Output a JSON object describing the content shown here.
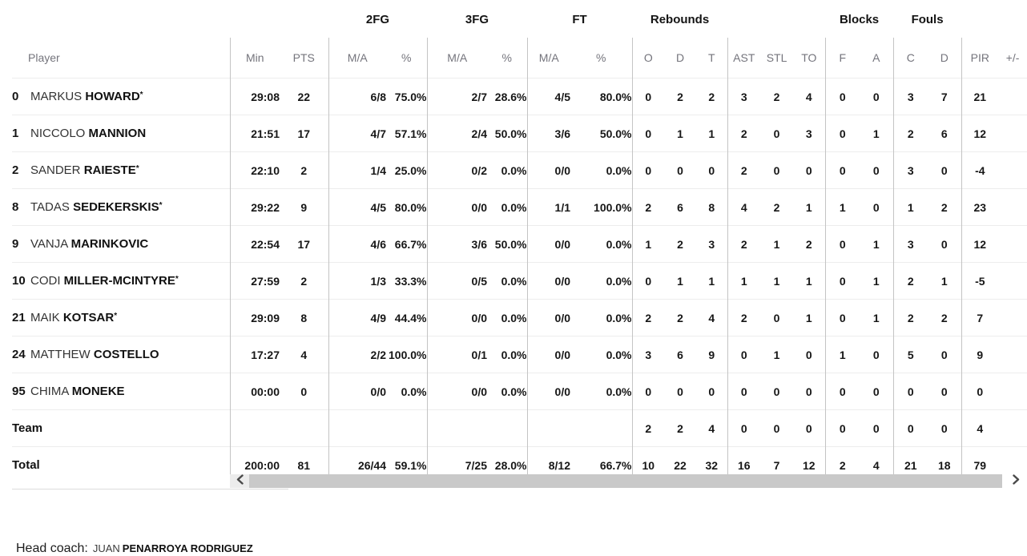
{
  "table": {
    "player_col_header": "Player",
    "starter_marker": "*",
    "groups": [
      {
        "label": "",
        "cols": [
          "Min",
          "PTS"
        ]
      },
      {
        "label": "2FG",
        "cols": [
          "M/A",
          "%"
        ]
      },
      {
        "label": "3FG",
        "cols": [
          "M/A",
          "%"
        ]
      },
      {
        "label": "FT",
        "cols": [
          "M/A",
          "%"
        ]
      },
      {
        "label": "Rebounds",
        "cols": [
          "O",
          "D",
          "T"
        ]
      },
      {
        "label": "",
        "cols": [
          "AST",
          "STL",
          "TO"
        ]
      },
      {
        "label": "Blocks",
        "cols": [
          "F",
          "A"
        ]
      },
      {
        "label": "Fouls",
        "cols": [
          "C",
          "D"
        ]
      },
      {
        "label": "",
        "cols": [
          "PIR",
          "+/-"
        ]
      }
    ],
    "rows": [
      {
        "number": "0",
        "first": "MARKUS",
        "last": "HOWARD",
        "starter": true,
        "stats": [
          "29:08",
          "22",
          "6/8",
          "75.0%",
          "2/7",
          "28.6%",
          "4/5",
          "80.0%",
          "0",
          "2",
          "2",
          "3",
          "2",
          "4",
          "0",
          "0",
          "3",
          "7",
          "21",
          ""
        ]
      },
      {
        "number": "1",
        "first": "NICCOLO",
        "last": "MANNION",
        "starter": false,
        "stats": [
          "21:51",
          "17",
          "4/7",
          "57.1%",
          "2/4",
          "50.0%",
          "3/6",
          "50.0%",
          "0",
          "1",
          "1",
          "2",
          "0",
          "3",
          "0",
          "1",
          "2",
          "6",
          "12",
          ""
        ]
      },
      {
        "number": "2",
        "first": "SANDER",
        "last": "RAIESTE",
        "starter": true,
        "stats": [
          "22:10",
          "2",
          "1/4",
          "25.0%",
          "0/2",
          "0.0%",
          "0/0",
          "0.0%",
          "0",
          "0",
          "0",
          "2",
          "0",
          "0",
          "0",
          "0",
          "3",
          "0",
          "-4",
          ""
        ]
      },
      {
        "number": "8",
        "first": "TADAS",
        "last": "SEDEKERSKIS",
        "starter": true,
        "stats": [
          "29:22",
          "9",
          "4/5",
          "80.0%",
          "0/0",
          "0.0%",
          "1/1",
          "100.0%",
          "2",
          "6",
          "8",
          "4",
          "2",
          "1",
          "1",
          "0",
          "1",
          "2",
          "23",
          ""
        ]
      },
      {
        "number": "9",
        "first": "VANJA",
        "last": "MARINKOVIC",
        "starter": false,
        "stats": [
          "22:54",
          "17",
          "4/6",
          "66.7%",
          "3/6",
          "50.0%",
          "0/0",
          "0.0%",
          "1",
          "2",
          "3",
          "2",
          "1",
          "2",
          "0",
          "1",
          "3",
          "0",
          "12",
          ""
        ]
      },
      {
        "number": "10",
        "first": "CODI",
        "last": "MILLER-MCINTYRE",
        "starter": true,
        "stats": [
          "27:59",
          "2",
          "1/3",
          "33.3%",
          "0/5",
          "0.0%",
          "0/0",
          "0.0%",
          "0",
          "1",
          "1",
          "1",
          "1",
          "1",
          "0",
          "1",
          "2",
          "1",
          "-5",
          ""
        ]
      },
      {
        "number": "21",
        "first": "MAIK",
        "last": "KOTSAR",
        "starter": true,
        "stats": [
          "29:09",
          "8",
          "4/9",
          "44.4%",
          "0/0",
          "0.0%",
          "0/0",
          "0.0%",
          "2",
          "2",
          "4",
          "2",
          "0",
          "1",
          "0",
          "1",
          "2",
          "2",
          "7",
          ""
        ]
      },
      {
        "number": "24",
        "first": "MATTHEW",
        "last": "COSTELLO",
        "starter": false,
        "stats": [
          "17:27",
          "4",
          "2/2",
          "100.0%",
          "0/1",
          "0.0%",
          "0/0",
          "0.0%",
          "3",
          "6",
          "9",
          "0",
          "1",
          "0",
          "1",
          "0",
          "5",
          "0",
          "9",
          ""
        ]
      },
      {
        "number": "95",
        "first": "CHIMA",
        "last": "MONEKE",
        "starter": false,
        "stats": [
          "00:00",
          "0",
          "0/0",
          "0.0%",
          "0/0",
          "0.0%",
          "0/0",
          "0.0%",
          "0",
          "0",
          "0",
          "0",
          "0",
          "0",
          "0",
          "0",
          "0",
          "0",
          "0",
          ""
        ]
      }
    ],
    "team_row": {
      "label": "Team",
      "stats": [
        "",
        "",
        "",
        "",
        "",
        "",
        "",
        "",
        "2",
        "2",
        "4",
        "0",
        "0",
        "0",
        "0",
        "0",
        "0",
        "0",
        "4",
        ""
      ]
    },
    "total_row": {
      "label": "Total",
      "stats": [
        "200:00",
        "81",
        "26/44",
        "59.1%",
        "7/25",
        "28.0%",
        "8/12",
        "66.7%",
        "10",
        "22",
        "32",
        "16",
        "7",
        "12",
        "2",
        "4",
        "21",
        "18",
        "79",
        ""
      ]
    }
  },
  "icons": {
    "scroll_left": "chevron-left",
    "scroll_right": "chevron-right"
  },
  "footer": {
    "head_coach_label": "Head coach:",
    "coach_first_name": "JUAN",
    "coach_last_name": "PENARROYA RODRIGUEZ"
  },
  "colors": {
    "text": "#141414",
    "header_text": "#74747c",
    "group_border": "#c4c4c4",
    "row_separator": "#ededed",
    "scrollbar_thumb": "#c9c9c9",
    "scrollbar_button_bg": "#ececec"
  }
}
